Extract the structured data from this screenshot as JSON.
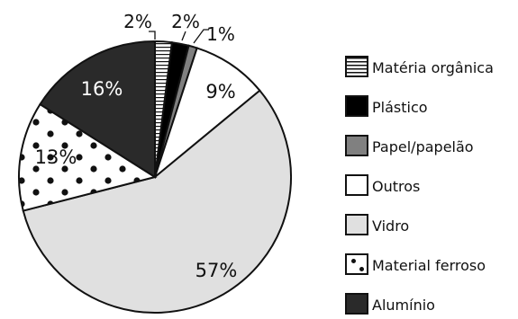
{
  "chart_data": {
    "type": "pie",
    "slices": [
      {
        "label": "Matéria orgânica",
        "value": 2,
        "value_label": "2%",
        "color": "#ffffff",
        "pattern": "horizontal-lines"
      },
      {
        "label": "Plástico",
        "value": 2,
        "value_label": "2%",
        "color": "#000000",
        "pattern": "solid"
      },
      {
        "label": "Papel/papelão",
        "value": 1,
        "value_label": "1%",
        "color": "#808080",
        "pattern": "solid"
      },
      {
        "label": "Outros",
        "value": 9,
        "value_label": "9%",
        "color": "#ffffff",
        "pattern": "solid"
      },
      {
        "label": "Vidro",
        "value": 57,
        "value_label": "57%",
        "color": "#e0e0e0",
        "pattern": "solid"
      },
      {
        "label": "Material ferroso",
        "value": 13,
        "value_label": "13%",
        "color": "#ffffff",
        "pattern": "dots"
      },
      {
        "label": "Alumínio",
        "value": 16,
        "value_label": "16%",
        "color": "#2a2a2a",
        "pattern": "solid"
      }
    ],
    "legend_position": "right",
    "start_angle": "top, clockwise"
  }
}
